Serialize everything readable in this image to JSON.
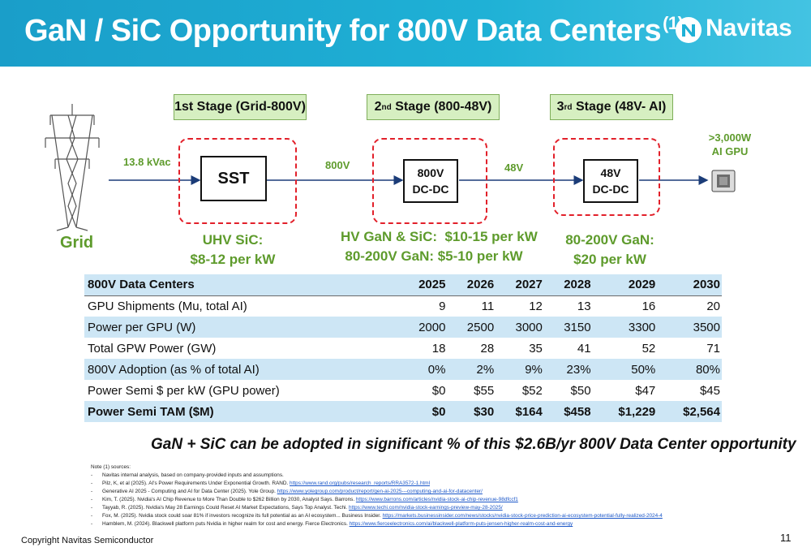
{
  "header": {
    "title": "GaN / SiC Opportunity for 800V Data Centers",
    "title_note": "(1)",
    "logo_text": "Navitas"
  },
  "diagram": {
    "grid_label": "Grid",
    "input_voltage": "13.8 kVac",
    "stages": [
      {
        "label_main": "1st Stage (Grid-800V)"
      },
      {
        "label_num": "2",
        "label_sup": "nd",
        "label_rest": " Stage (800-48V)"
      },
      {
        "label_num": "3",
        "label_sup": "rd",
        "label_rest": " Stage (48V- AI)"
      }
    ],
    "boxes": {
      "sst": "SST",
      "dc800_line1": "800V",
      "dc800_line2": "DC-DC",
      "dc48_line1": "48V",
      "dc48_line2": "DC-DC"
    },
    "arrow_labels": {
      "v800": "800V",
      "v48": "48V"
    },
    "gpu_label_line1": ">3,000W",
    "gpu_label_line2": "AI GPU",
    "opportunities": {
      "stage1_line1": "UHV SiC:",
      "stage1_line2": "$8-12 per kW",
      "stage2_line1": "HV GaN & SiC:  $10-15 per kW",
      "stage2_line2": "80-200V GaN: $5-10 per kW",
      "stage3_line1": "80-200V GaN:",
      "stage3_line2": "$20 per kW"
    },
    "colors": {
      "accent_green": "#5e9b2c",
      "dashed_red": "#e2202a",
      "stage_fill": "#d6efc1",
      "header_blue": "#1fb1d6"
    }
  },
  "table": {
    "header": [
      "800V Data Centers",
      "2025",
      "2026",
      "2027",
      "2028",
      "2029",
      "2030"
    ],
    "rows": [
      [
        "GPU Shipments (Mu, total AI)",
        "9",
        "11",
        "12",
        "13",
        "16",
        "20"
      ],
      [
        "Power per GPU (W)",
        "2000",
        "2500",
        "3000",
        "3150",
        "3300",
        "3500"
      ],
      [
        "Total GPW Power (GW)",
        "18",
        "28",
        "35",
        "41",
        "52",
        "71"
      ],
      [
        "800V Adoption (as % of total AI)",
        "0%",
        "2%",
        "9%",
        "23%",
        "50%",
        "80%"
      ],
      [
        "Power Semi $ per kW (GPU power)",
        "$0",
        "$55",
        "$52",
        "$50",
        "$47",
        "$45"
      ],
      [
        "Power Semi TAM ($M)",
        "$0",
        "$30",
        "$164",
        "$458",
        "$1,229",
        "$2,564"
      ]
    ]
  },
  "callout": "GaN + SiC can be adopted in significant % of this $2.6B/yr 800V Data Center opportunity",
  "notes": {
    "title": "Note (1) sources:",
    "items": [
      {
        "text": "Navitas internal analysis, based on company-provided inputs and assumptions.",
        "link": ""
      },
      {
        "text": "Pilz, K, et al (2025). AI's Power Requirements Under Exponential Growth. RAND. ",
        "link": "https://www.rand.org/pubs/research_reports/RRA3572-1.html"
      },
      {
        "text": "Generative AI 2025 - Computing and AI for Data Center (2025). Yole Group. ",
        "link": "https://www.yolegroup.com/product/report/gen-ai-2025---computing-and-ai-for-datacenter/"
      },
      {
        "text": "Kim, T. (2025). Nvidia's AI Chip Revenue to More Than Double to $262 Billion by 2030, Analyst Says. Barrons. ",
        "link": "https://www.barrons.com/articles/nvidia-stock-ai-chip-revenue-98dfccf1"
      },
      {
        "text": "Tayyab, R. (2025). Nvidia's May 28 Earnings Could Reset AI Market Expectations, Says Top Analyst. Techi. ",
        "link": "https://www.techi.com/nvidia-stock-earnings-preview-may-28-2025/"
      },
      {
        "text": "Fox, M. (2025). Nvidia stock could soar 81% if investors recognize its full potential as an AI ecosystem... Business Insider. ",
        "link": "https://markets.businessinsider.com/news/stocks/nvidia-stock-price-prediction-ai-ecosystem-potential-fully-realized-2024-4"
      },
      {
        "text": "Hamblem, M. (2024). Blackwell platform puts Nvidia in higher realm for cost and energy. Fierce Electronics. ",
        "link": "https://www.fierceelectronics.com/ai/blackwell-platform-puts-jensen-higher-realm-cost-and-energy"
      }
    ]
  },
  "footer": {
    "copyright": "Copyright Navitas Semiconductor",
    "page_number": "11"
  }
}
